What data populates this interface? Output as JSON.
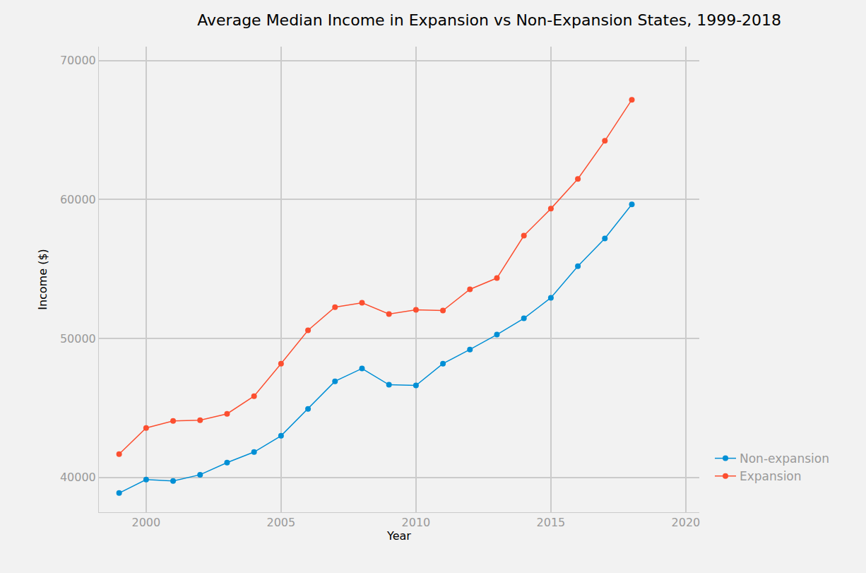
{
  "chart_data": {
    "type": "line",
    "title": "Average Median Income in Expansion vs Non-Expansion States, 1999-2018",
    "x_label": "Year",
    "y_label": "Income ($)",
    "x": [
      1999,
      2000,
      2001,
      2002,
      2003,
      2004,
      2005,
      2006,
      2007,
      2008,
      2009,
      2010,
      2011,
      2012,
      2013,
      2014,
      2015,
      2016,
      2017,
      2018
    ],
    "series": [
      {
        "name": "Non-expansion",
        "color": "#008fd5",
        "marker": "circle",
        "values": [
          38880,
          39850,
          39750,
          40200,
          41070,
          41830,
          43000,
          44940,
          46920,
          47840,
          46670,
          46620,
          48190,
          49210,
          50280,
          51450,
          52930,
          55200,
          57200,
          59650
        ]
      },
      {
        "name": "Expansion",
        "color": "#fc4f30",
        "marker": "circle",
        "values": [
          41680,
          43560,
          44070,
          44120,
          44580,
          45850,
          48190,
          50590,
          52260,
          52570,
          51760,
          52060,
          52010,
          53540,
          54350,
          57400,
          59340,
          61480,
          64220,
          67180
        ]
      }
    ],
    "xlim": [
      1998.25,
      2020.5
    ],
    "xticks": [
      2000,
      2005,
      2010,
      2015,
      2020
    ],
    "ylim": [
      37500,
      71000
    ],
    "yticks": [
      40000,
      50000,
      60000,
      70000
    ],
    "grid": true,
    "legend": "right"
  }
}
